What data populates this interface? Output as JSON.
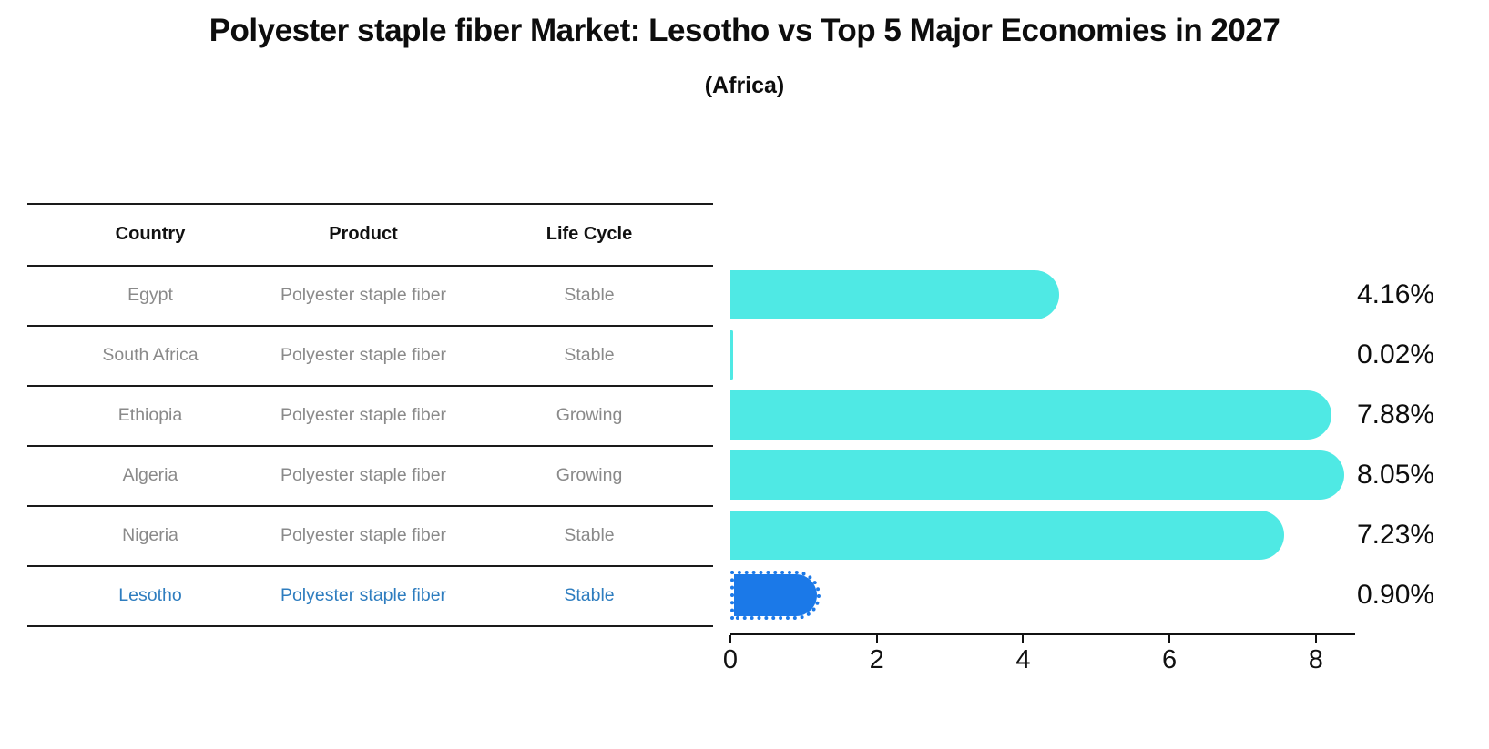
{
  "title": "Polyester staple fiber Market: Lesotho vs Top 5 Major Economies in 2027",
  "subtitle": "(Africa)",
  "table": {
    "headers": [
      "Country",
      "Product",
      "Life Cycle"
    ],
    "rows": [
      {
        "country": "Egypt",
        "product": "Polyester staple fiber",
        "life_cycle": "Stable"
      },
      {
        "country": "South Africa",
        "product": "Polyester staple fiber",
        "life_cycle": "Stable"
      },
      {
        "country": "Ethiopia",
        "product": "Polyester staple fiber",
        "life_cycle": "Growing"
      },
      {
        "country": "Algeria",
        "product": "Polyester staple fiber",
        "life_cycle": "Growing"
      },
      {
        "country": "Nigeria",
        "product": "Polyester staple fiber",
        "life_cycle": "Stable"
      },
      {
        "country": "Lesotho",
        "product": "Polyester staple fiber",
        "life_cycle": "Stable"
      }
    ],
    "highlighted_country": "Lesotho"
  },
  "chart_data": {
    "type": "bar",
    "orientation": "horizontal",
    "title": "Polyester staple fiber Market: Lesotho vs Top 5 Major Economies in 2027 (Africa)",
    "categories": [
      "Egypt",
      "South Africa",
      "Ethiopia",
      "Algeria",
      "Nigeria",
      "Lesotho"
    ],
    "values": [
      4.16,
      0.02,
      7.88,
      8.05,
      7.23,
      0.9
    ],
    "value_labels": [
      "4.16%",
      "0.02%",
      "7.88%",
      "8.05%",
      "7.23%",
      "0.90%"
    ],
    "xticks": [
      "0",
      "2",
      "4",
      "6",
      "8"
    ],
    "xlim": [
      0,
      8.5
    ],
    "grid": false,
    "legend": false,
    "bar_color": "#4fe9e4",
    "highlight_color": "#1b79e8",
    "highlight_index": 5
  },
  "colors": {
    "bar_cyan": "#4fe9e4",
    "bar_blue": "#1b79e8",
    "row_text": "#8a8a8a",
    "highlight_text": "#2e7dbf",
    "heading_text": "#111111"
  }
}
